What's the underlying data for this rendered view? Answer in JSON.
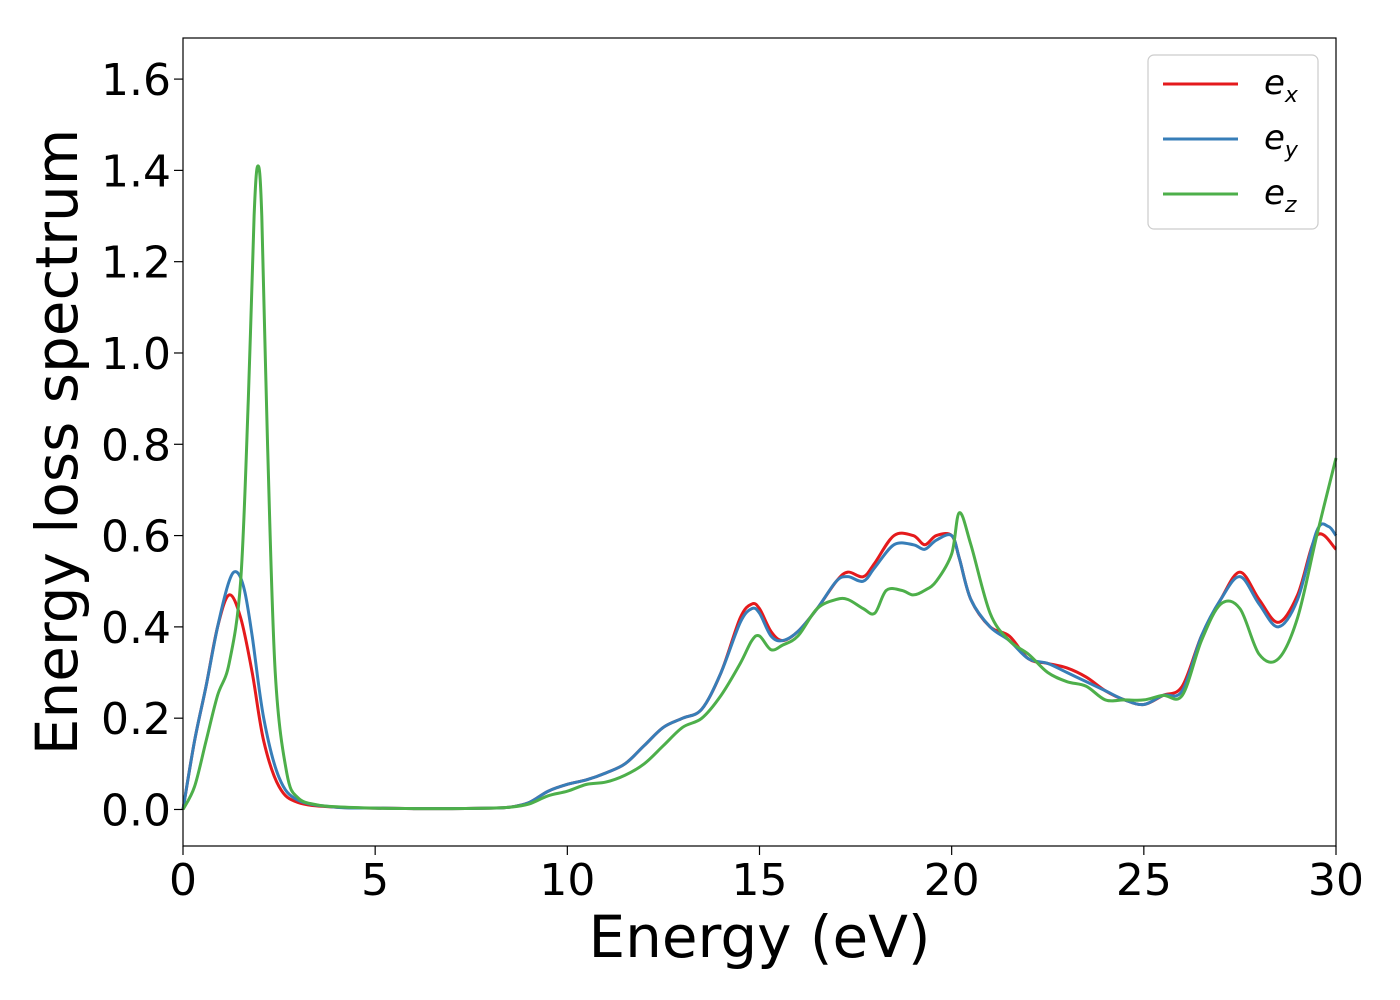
{
  "chart_data": {
    "type": "line",
    "title": "",
    "xlabel": "Energy (eV)",
    "ylabel": "Energy loss spectrum",
    "xlim": [
      0,
      30
    ],
    "ylim": [
      -0.08,
      1.69
    ],
    "xticks": [
      0,
      5,
      10,
      15,
      20,
      25,
      30
    ],
    "yticks": [
      0.0,
      0.2,
      0.4,
      0.6,
      0.8,
      1.0,
      1.2,
      1.4,
      1.6
    ],
    "xtick_labels": [
      "0",
      "5",
      "10",
      "15",
      "20",
      "25",
      "30"
    ],
    "ytick_labels": [
      "0.0",
      "0.2",
      "0.4",
      "0.6",
      "0.8",
      "1.0",
      "1.2",
      "1.4",
      "1.6"
    ],
    "grid": false,
    "legend_position": "top-right",
    "series": [
      {
        "name": "e_x",
        "label_base": "e",
        "label_sub": "x",
        "color": "#e41a1c",
        "x": [
          0,
          0.3,
          0.6,
          0.9,
          1.2,
          1.5,
          1.8,
          2.1,
          2.5,
          3.0,
          4.0,
          5,
          6,
          7,
          8,
          8.5,
          9,
          9.5,
          10,
          10.5,
          11,
          11.5,
          12,
          12.5,
          13,
          13.5,
          14,
          14.5,
          14.8,
          15.0,
          15.3,
          15.6,
          16.0,
          16.5,
          17.0,
          17.3,
          17.7,
          18.0,
          18.5,
          19.0,
          19.3,
          19.6,
          20.0,
          20.2,
          20.5,
          21.0,
          21.5,
          22.0,
          22.5,
          23.0,
          23.5,
          24.0,
          24.5,
          25.0,
          25.5,
          26.0,
          26.5,
          27.0,
          27.5,
          28.0,
          28.5,
          29.0,
          29.5,
          30.0
        ],
        "y": [
          0.0,
          0.15,
          0.27,
          0.4,
          0.47,
          0.42,
          0.3,
          0.15,
          0.05,
          0.015,
          0.005,
          0.003,
          0.002,
          0.002,
          0.003,
          0.005,
          0.015,
          0.04,
          0.055,
          0.065,
          0.08,
          0.1,
          0.14,
          0.18,
          0.2,
          0.22,
          0.3,
          0.42,
          0.45,
          0.44,
          0.39,
          0.37,
          0.39,
          0.44,
          0.5,
          0.52,
          0.51,
          0.54,
          0.6,
          0.6,
          0.58,
          0.6,
          0.6,
          0.55,
          0.46,
          0.4,
          0.38,
          0.33,
          0.32,
          0.31,
          0.29,
          0.26,
          0.24,
          0.23,
          0.25,
          0.27,
          0.38,
          0.46,
          0.52,
          0.46,
          0.41,
          0.47,
          0.6,
          0.57
        ]
      },
      {
        "name": "e_y",
        "label_base": "e",
        "label_sub": "y",
        "color": "#377eb8",
        "x": [
          0,
          0.3,
          0.6,
          0.9,
          1.2,
          1.4,
          1.6,
          1.8,
          2.1,
          2.5,
          3.0,
          4.0,
          5,
          6,
          7,
          8,
          8.5,
          9,
          9.5,
          10,
          10.5,
          11,
          11.5,
          12,
          12.5,
          13,
          13.5,
          14,
          14.5,
          14.8,
          15.0,
          15.3,
          15.6,
          16.0,
          16.5,
          17.0,
          17.3,
          17.7,
          18.0,
          18.5,
          19.0,
          19.3,
          19.6,
          20.0,
          20.2,
          20.5,
          21.0,
          21.5,
          22.0,
          22.5,
          23.0,
          23.5,
          24.0,
          24.5,
          25.0,
          25.5,
          26.0,
          26.5,
          27.0,
          27.5,
          28.0,
          28.5,
          29.0,
          29.5,
          29.8,
          30.0
        ],
        "y": [
          0.0,
          0.15,
          0.27,
          0.4,
          0.5,
          0.52,
          0.48,
          0.38,
          0.2,
          0.07,
          0.02,
          0.005,
          0.003,
          0.002,
          0.002,
          0.003,
          0.005,
          0.015,
          0.04,
          0.055,
          0.065,
          0.08,
          0.1,
          0.14,
          0.18,
          0.2,
          0.22,
          0.3,
          0.41,
          0.44,
          0.43,
          0.38,
          0.37,
          0.39,
          0.44,
          0.5,
          0.51,
          0.5,
          0.53,
          0.58,
          0.58,
          0.57,
          0.59,
          0.6,
          0.55,
          0.46,
          0.4,
          0.37,
          0.33,
          0.32,
          0.3,
          0.28,
          0.26,
          0.24,
          0.23,
          0.25,
          0.26,
          0.38,
          0.46,
          0.51,
          0.45,
          0.4,
          0.46,
          0.61,
          0.62,
          0.6
        ]
      },
      {
        "name": "e_z",
        "label_base": "e",
        "label_sub": "z",
        "color": "#4daf4a",
        "x": [
          0,
          0.3,
          0.6,
          0.9,
          1.2,
          1.5,
          1.7,
          1.85,
          1.95,
          2.05,
          2.2,
          2.4,
          2.7,
          3.0,
          3.5,
          4.0,
          5,
          6,
          7,
          8,
          8.5,
          9,
          9.5,
          10,
          10.5,
          11,
          11.5,
          12,
          12.5,
          13,
          13.5,
          14,
          14.5,
          14.8,
          15.0,
          15.3,
          15.6,
          16.0,
          16.5,
          17.0,
          17.3,
          17.7,
          18.0,
          18.3,
          18.7,
          19.0,
          19.3,
          19.6,
          20.0,
          20.2,
          20.5,
          21.0,
          21.5,
          22.0,
          22.5,
          23.0,
          23.5,
          24.0,
          24.5,
          25.0,
          25.5,
          26.0,
          26.5,
          27.0,
          27.5,
          28.0,
          28.5,
          29.0,
          29.5,
          30.0
        ],
        "y": [
          0.0,
          0.05,
          0.15,
          0.25,
          0.32,
          0.5,
          0.9,
          1.3,
          1.41,
          1.3,
          0.8,
          0.3,
          0.08,
          0.025,
          0.01,
          0.006,
          0.003,
          0.002,
          0.002,
          0.003,
          0.005,
          0.012,
          0.03,
          0.04,
          0.055,
          0.06,
          0.075,
          0.1,
          0.14,
          0.18,
          0.2,
          0.25,
          0.32,
          0.37,
          0.38,
          0.35,
          0.36,
          0.38,
          0.44,
          0.46,
          0.46,
          0.44,
          0.43,
          0.48,
          0.48,
          0.47,
          0.48,
          0.5,
          0.56,
          0.65,
          0.58,
          0.43,
          0.37,
          0.34,
          0.3,
          0.28,
          0.27,
          0.24,
          0.24,
          0.24,
          0.25,
          0.25,
          0.37,
          0.45,
          0.44,
          0.34,
          0.33,
          0.42,
          0.6,
          0.77
        ]
      }
    ]
  }
}
